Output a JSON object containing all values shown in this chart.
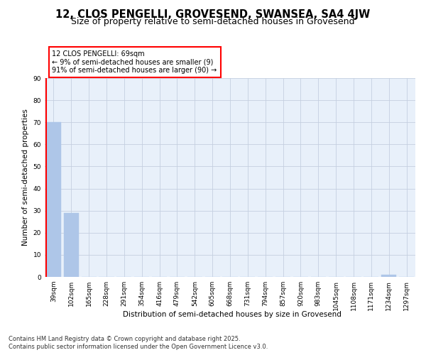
{
  "title": "12, CLOS PENGELLI, GROVESEND, SWANSEA, SA4 4JW",
  "subtitle": "Size of property relative to semi-detached houses in Grovesend",
  "xlabel": "Distribution of semi-detached houses by size in Grovesend",
  "ylabel": "Number of semi-detached properties",
  "categories": [
    "39sqm",
    "102sqm",
    "165sqm",
    "228sqm",
    "291sqm",
    "354sqm",
    "416sqm",
    "479sqm",
    "542sqm",
    "605sqm",
    "668sqm",
    "731sqm",
    "794sqm",
    "857sqm",
    "920sqm",
    "983sqm",
    "1045sqm",
    "1108sqm",
    "1171sqm",
    "1234sqm",
    "1297sqm"
  ],
  "values": [
    70,
    29,
    0,
    0,
    0,
    0,
    0,
    0,
    0,
    0,
    0,
    0,
    0,
    0,
    0,
    0,
    0,
    0,
    0,
    1,
    0
  ],
  "bar_color": "#aec6e8",
  "vline_color": "red",
  "annotation_title": "12 CLOS PENGELLI: 69sqm",
  "annotation_line1": "← 9% of semi-detached houses are smaller (9)",
  "annotation_line2": "91% of semi-detached houses are larger (90) →",
  "ylim": [
    0,
    90
  ],
  "yticks": [
    0,
    10,
    20,
    30,
    40,
    50,
    60,
    70,
    80,
    90
  ],
  "bg_color": "#e8f0fa",
  "grid_color": "#c5cfe0",
  "footer1": "Contains HM Land Registry data © Crown copyright and database right 2025.",
  "footer2": "Contains public sector information licensed under the Open Government Licence v3.0.",
  "title_fontsize": 10.5,
  "subtitle_fontsize": 9,
  "axis_label_fontsize": 7.5,
  "tick_fontsize": 6.5,
  "annotation_fontsize": 7,
  "footer_fontsize": 6
}
